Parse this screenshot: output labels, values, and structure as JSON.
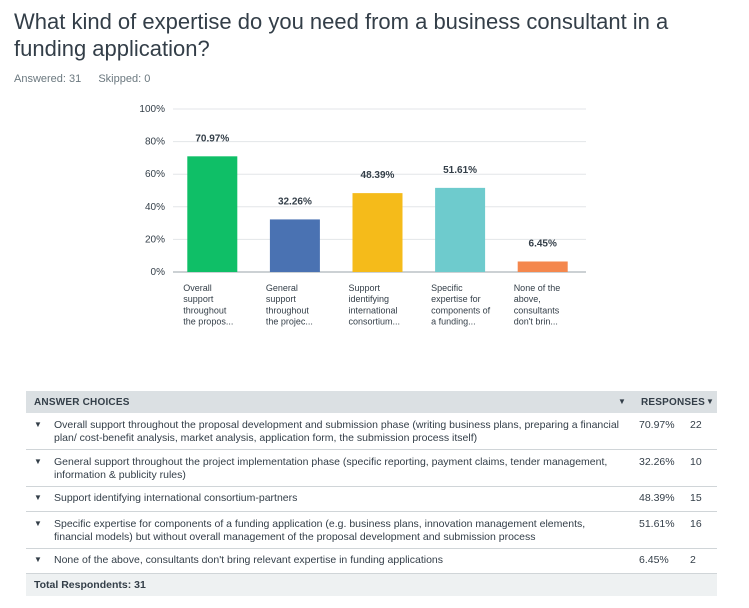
{
  "question": {
    "title": "What kind of expertise do you need from a business consultant in a funding application?",
    "answered_label": "Answered: 31",
    "skipped_label": "Skipped: 0"
  },
  "chart_data": {
    "type": "bar",
    "categories": [
      [
        "Overall",
        "support",
        "throughout",
        "the propos..."
      ],
      [
        "General",
        "support",
        "throughout",
        "the projec..."
      ],
      [
        "Support",
        "identifying",
        "international",
        "consortium..."
      ],
      [
        "Specific",
        "expertise for",
        "components of",
        "a funding..."
      ],
      [
        "None of the",
        "above,",
        "consultants",
        "don't brin..."
      ]
    ],
    "values": [
      70.97,
      32.26,
      48.39,
      51.61,
      6.45
    ],
    "value_labels": [
      "70.97%",
      "32.26%",
      "48.39%",
      "51.61%",
      "6.45%"
    ],
    "colors": [
      "#0fbf67",
      "#4a72b2",
      "#f5bb1a",
      "#6ecbcd",
      "#f4874d"
    ],
    "yticks": [
      "0%",
      "20%",
      "40%",
      "60%",
      "80%",
      "100%"
    ],
    "ylim": [
      0,
      100
    ],
    "grid": true
  },
  "table": {
    "header_choices": "ANSWER CHOICES",
    "header_responses": "RESPONSES",
    "sort_icon": "▼",
    "row_icon": "▼",
    "rows": [
      {
        "text": "Overall support throughout the proposal development and submission phase (writing business plans, preparing a financial plan/ cost-benefit analysis, market analysis, application form, the submission process itself)",
        "pct": "70.97%",
        "count": "22"
      },
      {
        "text": "General support throughout the project implementation phase (specific reporting, payment claims, tender management, information & publicity rules)",
        "pct": "32.26%",
        "count": "10"
      },
      {
        "text": "Support identifying international consortium-partners",
        "pct": "48.39%",
        "count": "15"
      },
      {
        "text": "Specific expertise for components of a funding application (e.g. business plans, innovation management elements, financial models) but without overall management of the proposal development and submission process",
        "pct": "51.61%",
        "count": "16"
      },
      {
        "text": "None of the above, consultants don't bring relevant expertise in funding applications",
        "pct": "6.45%",
        "count": "2"
      }
    ],
    "footer": "Total Respondents: 31"
  }
}
